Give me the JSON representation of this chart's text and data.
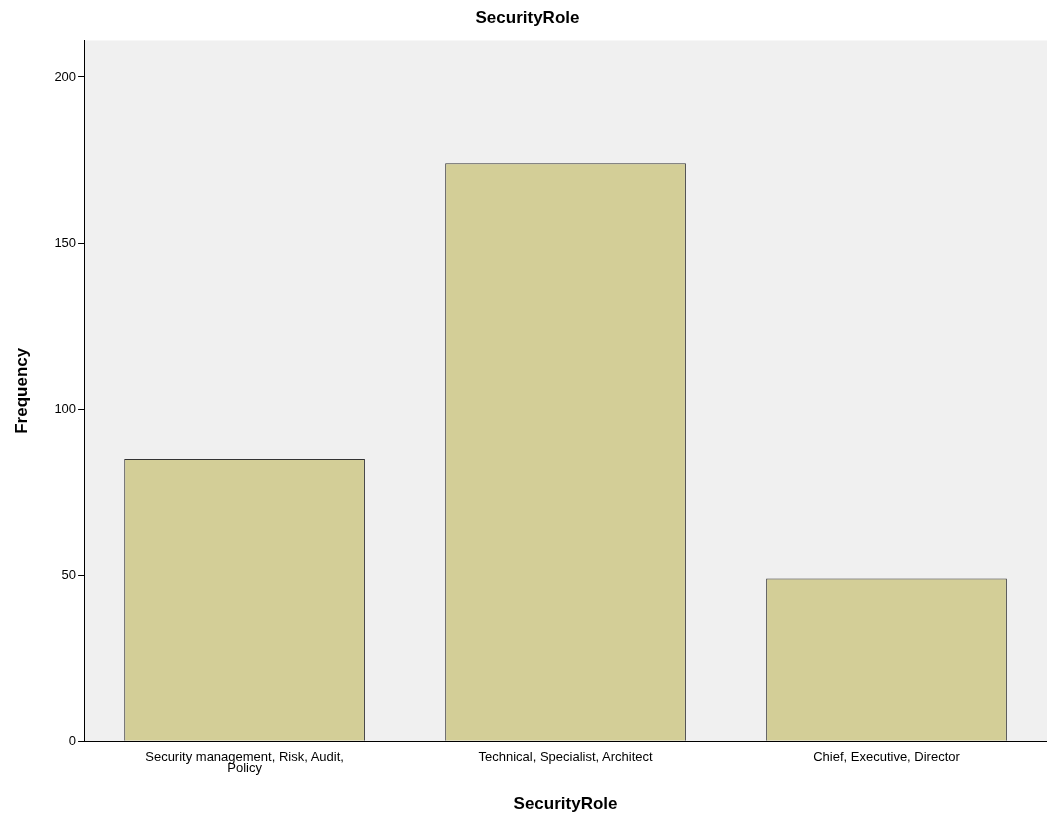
{
  "chart_data": {
    "type": "bar",
    "title": "SecurityRole",
    "xlabel": "SecurityRole",
    "ylabel": "Frequency",
    "categories": [
      "Security management, Risk, Audit, Policy",
      "Technical, Specialist, Architect",
      "Chief, Executive, Director"
    ],
    "values": [
      85,
      174,
      49
    ],
    "color": "#d3ce97",
    "ylim": [
      0,
      211
    ],
    "yticks": [
      0,
      50,
      100,
      150,
      200
    ],
    "grid": false,
    "legend": false
  }
}
